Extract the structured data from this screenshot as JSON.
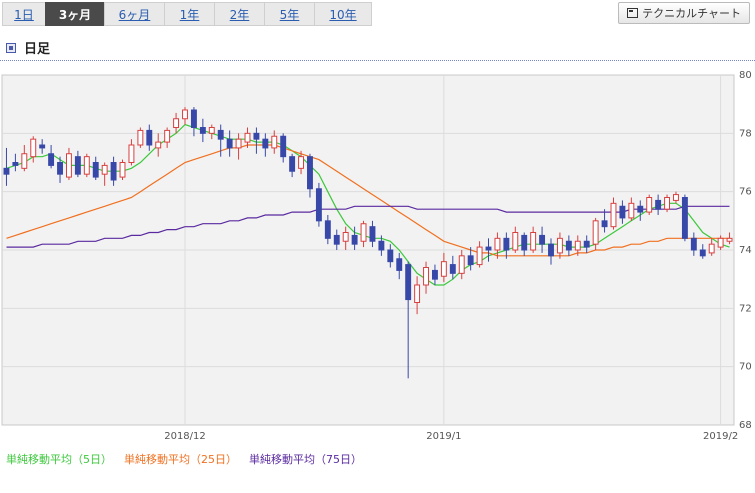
{
  "tabs": [
    {
      "label": "1日",
      "active": false
    },
    {
      "label": "3ヶ月",
      "active": true
    },
    {
      "label": "6ヶ月",
      "active": false
    },
    {
      "label": "1年",
      "active": false
    },
    {
      "label": "2年",
      "active": false
    },
    {
      "label": "5年",
      "active": false
    },
    {
      "label": "10年",
      "active": false
    }
  ],
  "technical_button": {
    "label": "テクニカルチャート",
    "icon": "window-icon"
  },
  "section": {
    "title": "日足",
    "icon": "square-bullet-icon"
  },
  "legend": [
    {
      "label": "単純移動平均（5日）",
      "color": "#3cc83c"
    },
    {
      "label": "単純移動平均（25日）",
      "color": "#f07020"
    },
    {
      "label": "単純移動平均（75日）",
      "color": "#5a2aa0"
    }
  ],
  "chart_data": {
    "type": "candlestick",
    "ylim": [
      68,
      80
    ],
    "yticks": [
      68,
      70,
      72,
      74,
      76,
      78,
      80
    ],
    "x_tick_labels": [
      {
        "label": "2018/12",
        "index": 20
      },
      {
        "label": "2019/1",
        "index": 49
      },
      {
        "label": "2019/2",
        "index": 80
      }
    ],
    "up_color": "#d84040",
    "down_color": "#3848a8",
    "grid": true,
    "candles": [
      [
        76.8,
        76.6,
        77.5,
        76.2
      ],
      [
        77.0,
        76.9,
        77.3,
        76.7
      ],
      [
        76.8,
        77.3,
        77.6,
        76.7
      ],
      [
        77.2,
        77.8,
        77.9,
        77.0
      ],
      [
        77.6,
        77.5,
        77.8,
        77.3
      ],
      [
        77.3,
        76.9,
        77.6,
        76.8
      ],
      [
        77.0,
        76.6,
        77.2,
        76.3
      ],
      [
        76.5,
        77.3,
        77.5,
        76.4
      ],
      [
        77.2,
        76.6,
        77.4,
        76.5
      ],
      [
        76.6,
        77.2,
        77.3,
        76.5
      ],
      [
        77.0,
        76.5,
        77.2,
        76.4
      ],
      [
        76.6,
        76.9,
        77.0,
        76.2
      ],
      [
        77.0,
        76.4,
        77.2,
        76.2
      ],
      [
        76.5,
        77.0,
        77.1,
        76.4
      ],
      [
        77.0,
        77.6,
        77.8,
        76.9
      ],
      [
        77.6,
        78.1,
        78.2,
        77.5
      ],
      [
        78.1,
        77.6,
        78.3,
        77.4
      ],
      [
        77.5,
        77.7,
        78.0,
        77.2
      ],
      [
        77.7,
        78.1,
        78.2,
        77.5
      ],
      [
        78.2,
        78.5,
        78.7,
        78.0
      ],
      [
        78.5,
        78.8,
        78.9,
        78.3
      ],
      [
        78.8,
        78.2,
        78.9,
        77.9
      ],
      [
        78.2,
        78.0,
        78.5,
        77.7
      ],
      [
        78.0,
        78.2,
        78.3,
        77.8
      ],
      [
        78.1,
        77.8,
        78.3,
        77.2
      ],
      [
        77.8,
        77.5,
        78.1,
        77.2
      ],
      [
        77.5,
        77.8,
        78.0,
        77.1
      ],
      [
        77.7,
        78.0,
        78.2,
        77.5
      ],
      [
        78.0,
        77.8,
        78.2,
        77.3
      ],
      [
        77.8,
        77.5,
        78.0,
        77.2
      ],
      [
        77.5,
        77.9,
        78.1,
        77.3
      ],
      [
        77.9,
        77.2,
        78.0,
        77.0
      ],
      [
        77.2,
        76.7,
        77.3,
        76.5
      ],
      [
        76.8,
        77.2,
        77.4,
        76.6
      ],
      [
        77.2,
        76.1,
        77.3,
        75.8
      ],
      [
        76.1,
        75.0,
        76.3,
        74.8
      ],
      [
        75.0,
        74.4,
        75.2,
        74.2
      ],
      [
        74.5,
        74.2,
        74.7,
        74.0
      ],
      [
        74.3,
        74.6,
        74.8,
        74.0
      ],
      [
        74.5,
        74.2,
        74.8,
        74.0
      ],
      [
        74.3,
        74.9,
        75.0,
        74.1
      ],
      [
        74.8,
        74.3,
        75.0,
        74.1
      ],
      [
        74.3,
        74.0,
        74.5,
        73.8
      ],
      [
        74.0,
        73.6,
        74.2,
        73.4
      ],
      [
        73.7,
        73.3,
        73.9,
        73.0
      ],
      [
        73.5,
        72.3,
        73.6,
        69.6
      ],
      [
        72.2,
        72.8,
        73.1,
        71.8
      ],
      [
        72.8,
        73.4,
        73.6,
        72.5
      ],
      [
        73.3,
        73.0,
        73.5,
        72.8
      ],
      [
        73.1,
        73.6,
        73.9,
        72.9
      ],
      [
        73.5,
        73.2,
        73.8,
        73.0
      ],
      [
        73.2,
        73.8,
        74.0,
        73.0
      ],
      [
        73.8,
        73.5,
        74.1,
        73.3
      ],
      [
        73.5,
        74.1,
        74.3,
        73.4
      ],
      [
        74.1,
        74.0,
        74.4,
        73.6
      ],
      [
        74.0,
        74.4,
        74.6,
        73.7
      ],
      [
        74.4,
        74.0,
        74.6,
        73.7
      ],
      [
        74.0,
        74.6,
        74.8,
        73.9
      ],
      [
        74.5,
        74.0,
        74.6,
        73.8
      ],
      [
        74.0,
        74.6,
        74.8,
        73.9
      ],
      [
        74.5,
        74.2,
        74.8,
        73.9
      ],
      [
        74.2,
        73.8,
        74.4,
        73.5
      ],
      [
        73.9,
        74.4,
        74.6,
        73.7
      ],
      [
        74.3,
        74.0,
        74.5,
        73.8
      ],
      [
        74.0,
        74.3,
        74.5,
        73.8
      ],
      [
        74.3,
        74.1,
        74.5,
        73.9
      ],
      [
        74.2,
        75.0,
        75.1,
        74.0
      ],
      [
        75.0,
        74.8,
        75.4,
        74.6
      ],
      [
        74.8,
        75.6,
        75.8,
        74.7
      ],
      [
        75.5,
        75.1,
        75.7,
        74.9
      ],
      [
        75.1,
        75.6,
        75.8,
        75.0
      ],
      [
        75.5,
        75.3,
        75.7,
        75.0
      ],
      [
        75.3,
        75.8,
        75.9,
        75.2
      ],
      [
        75.7,
        75.4,
        75.9,
        75.2
      ],
      [
        75.4,
        75.8,
        75.9,
        75.3
      ],
      [
        75.7,
        75.9,
        76.0,
        75.6
      ],
      [
        75.8,
        74.4,
        75.9,
        74.3
      ],
      [
        74.4,
        74.0,
        74.6,
        73.8
      ],
      [
        74.0,
        73.8,
        74.2,
        73.7
      ],
      [
        73.9,
        74.2,
        74.4,
        73.8
      ],
      [
        74.1,
        74.4,
        74.5,
        74.0
      ],
      [
        74.3,
        74.4,
        74.6,
        74.2
      ]
    ],
    "series": [
      {
        "name": "単純移動平均（5日）",
        "color": "#3cc83c",
        "values": [
          76.8,
          76.9,
          77.0,
          77.2,
          77.2,
          77.3,
          77.1,
          76.9,
          76.9,
          76.9,
          76.8,
          76.7,
          76.7,
          76.7,
          76.8,
          77.0,
          77.3,
          77.6,
          77.8,
          78.0,
          78.3,
          78.2,
          78.1,
          78.0,
          77.9,
          77.8,
          77.8,
          77.8,
          77.7,
          77.7,
          77.7,
          77.6,
          77.4,
          77.2,
          76.9,
          76.6,
          76.0,
          75.4,
          74.9,
          74.6,
          74.5,
          74.4,
          74.4,
          74.3,
          74.0,
          73.6,
          73.2,
          73.0,
          72.8,
          72.8,
          73.0,
          73.3,
          73.5,
          73.6,
          73.8,
          73.9,
          74.0,
          74.1,
          74.2,
          74.2,
          74.2,
          74.2,
          74.2,
          74.1,
          74.1,
          74.1,
          74.2,
          74.4,
          74.6,
          74.8,
          75.0,
          75.2,
          75.4,
          75.5,
          75.6,
          75.6,
          75.4,
          75.0,
          74.6,
          74.4,
          74.2,
          74.1
        ]
      },
      {
        "name": "単純移動平均（25日）",
        "color": "#f07020",
        "values": [
          74.4,
          74.5,
          74.6,
          74.7,
          74.8,
          74.9,
          75.0,
          75.1,
          75.2,
          75.3,
          75.4,
          75.5,
          75.6,
          75.7,
          75.8,
          76.0,
          76.2,
          76.4,
          76.6,
          76.8,
          77.0,
          77.1,
          77.2,
          77.3,
          77.4,
          77.5,
          77.5,
          77.6,
          77.6,
          77.6,
          77.6,
          77.5,
          77.4,
          77.3,
          77.2,
          77.1,
          76.9,
          76.7,
          76.5,
          76.3,
          76.1,
          75.9,
          75.7,
          75.5,
          75.3,
          75.1,
          74.9,
          74.7,
          74.5,
          74.3,
          74.2,
          74.1,
          74.0,
          73.9,
          73.9,
          73.8,
          73.8,
          73.8,
          73.8,
          73.8,
          73.8,
          73.8,
          73.8,
          73.8,
          73.9,
          73.9,
          74.0,
          74.0,
          74.1,
          74.1,
          74.2,
          74.2,
          74.3,
          74.3,
          74.4,
          74.4,
          74.4,
          74.4,
          74.4,
          74.4,
          74.4,
          74.4
        ]
      },
      {
        "name": "単純移動平均（75日）",
        "color": "#5a2aa0",
        "values": [
          74.1,
          74.1,
          74.1,
          74.1,
          74.2,
          74.2,
          74.2,
          74.2,
          74.3,
          74.3,
          74.3,
          74.4,
          74.4,
          74.4,
          74.5,
          74.5,
          74.6,
          74.6,
          74.7,
          74.7,
          74.8,
          74.8,
          74.9,
          74.9,
          74.9,
          75.0,
          75.0,
          75.1,
          75.1,
          75.2,
          75.2,
          75.2,
          75.3,
          75.3,
          75.3,
          75.4,
          75.4,
          75.4,
          75.4,
          75.5,
          75.5,
          75.5,
          75.5,
          75.5,
          75.5,
          75.5,
          75.4,
          75.4,
          75.4,
          75.4,
          75.4,
          75.4,
          75.4,
          75.4,
          75.4,
          75.4,
          75.3,
          75.3,
          75.3,
          75.3,
          75.3,
          75.3,
          75.3,
          75.3,
          75.3,
          75.3,
          75.3,
          75.3,
          75.3,
          75.3,
          75.4,
          75.4,
          75.4,
          75.4,
          75.4,
          75.4,
          75.5,
          75.5,
          75.5,
          75.5,
          75.5,
          75.5
        ]
      }
    ]
  }
}
